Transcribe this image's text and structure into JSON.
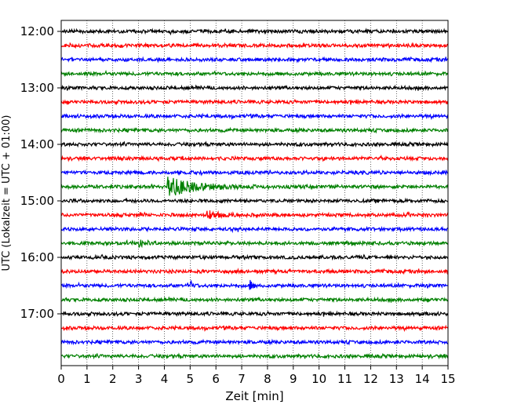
{
  "chart_data": {
    "type": "line",
    "title": "",
    "xlabel": "Zeit  [min]",
    "ylabel": "UTC (Lokalzeit = UTC + 01:00)",
    "xlim": [
      0,
      15
    ],
    "x_ticks": [
      "0",
      "1",
      "2",
      "3",
      "4",
      "5",
      "6",
      "7",
      "8",
      "9",
      "10",
      "11",
      "12",
      "13",
      "14",
      "15"
    ],
    "y_ticks": [
      "12:00",
      "13:00",
      "14:00",
      "15:00",
      "16:00",
      "17:00"
    ],
    "row_interval_minutes": 15,
    "colors": [
      "#000000",
      "#ff0000",
      "#0000ff",
      "#008000"
    ],
    "grid": "vertical dotted at each minute",
    "rows": [
      {
        "start": "12:00",
        "color": "#000000"
      },
      {
        "start": "12:15",
        "color": "#ff0000"
      },
      {
        "start": "12:30",
        "color": "#0000ff"
      },
      {
        "start": "12:45",
        "color": "#008000"
      },
      {
        "start": "13:00",
        "color": "#000000"
      },
      {
        "start": "13:15",
        "color": "#ff0000"
      },
      {
        "start": "13:30",
        "color": "#0000ff"
      },
      {
        "start": "13:45",
        "color": "#008000"
      },
      {
        "start": "14:00",
        "color": "#000000"
      },
      {
        "start": "14:15",
        "color": "#ff0000"
      },
      {
        "start": "14:30",
        "color": "#0000ff"
      },
      {
        "start": "14:45",
        "color": "#008000",
        "events": [
          {
            "t": 4.1,
            "amp": 3.2,
            "decay": 1.0
          }
        ]
      },
      {
        "start": "15:00",
        "color": "#000000"
      },
      {
        "start": "15:15",
        "color": "#ff0000",
        "events": [
          {
            "t": 5.6,
            "amp": 1.3,
            "decay": 0.5
          }
        ]
      },
      {
        "start": "15:30",
        "color": "#0000ff"
      },
      {
        "start": "15:45",
        "color": "#008000",
        "events": [
          {
            "t": 3.0,
            "amp": 1.2,
            "decay": 0.3
          }
        ]
      },
      {
        "start": "16:00",
        "color": "#000000"
      },
      {
        "start": "16:15",
        "color": "#ff0000"
      },
      {
        "start": "16:30",
        "color": "#0000ff",
        "events": [
          {
            "t": 5.0,
            "amp": 1.6,
            "decay": 0.1
          },
          {
            "t": 7.3,
            "amp": 1.7,
            "decay": 0.1
          }
        ]
      },
      {
        "start": "16:45",
        "color": "#008000"
      },
      {
        "start": "17:00",
        "color": "#000000"
      },
      {
        "start": "17:15",
        "color": "#ff0000"
      },
      {
        "start": "17:30",
        "color": "#0000ff"
      },
      {
        "start": "17:45",
        "color": "#008000"
      }
    ]
  }
}
